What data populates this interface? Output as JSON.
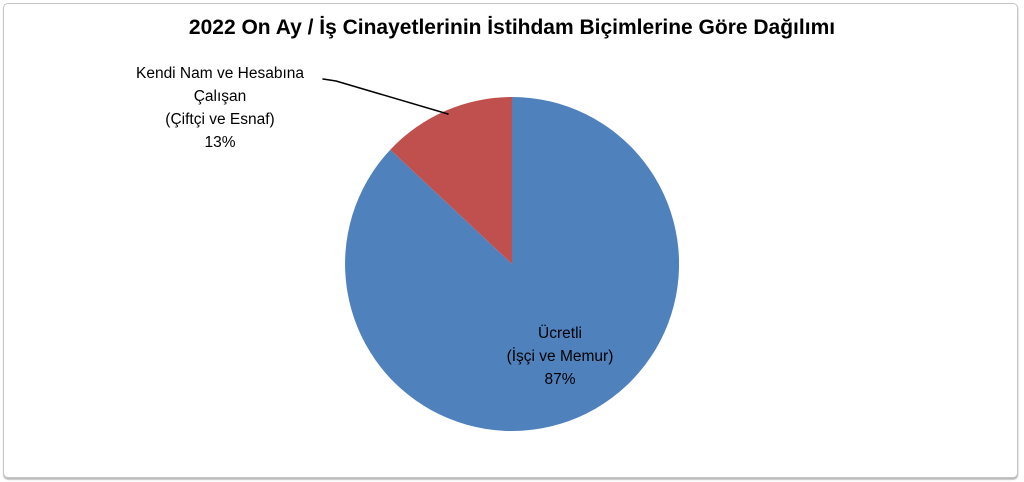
{
  "chart_data": {
    "type": "pie",
    "title": "2022 On Ay / İş Cinayetlerinin İstihdam Biçimlerine Göre Dağılımı",
    "categories": [
      "Ücretli (İşçi ve Memur)",
      "Kendi Nam ve Hesabına Çalışan (Çiftçi ve Esnaf)"
    ],
    "values": [
      87,
      13
    ],
    "unit": "%",
    "colors": [
      "#4F81BD",
      "#C0504D"
    ],
    "slice_ids": [
      "ucretli",
      "kendi-nam"
    ],
    "start_angle_deg": 0,
    "direction": "clockwise",
    "legend": "none",
    "background": "#ffffff",
    "frame_border_color": "#c6c6c6",
    "leader_line_color": "#000000"
  },
  "labels": {
    "ucretli": {
      "line1": "Ücretli",
      "line2": "(İşçi ve Memur)",
      "line3": "87%"
    },
    "kendi_nam": {
      "line1": "Kendi Nam ve Hesabına",
      "line2": "Çalışan",
      "line3": "(Çiftçi ve Esnaf)",
      "line4": "13%"
    }
  }
}
